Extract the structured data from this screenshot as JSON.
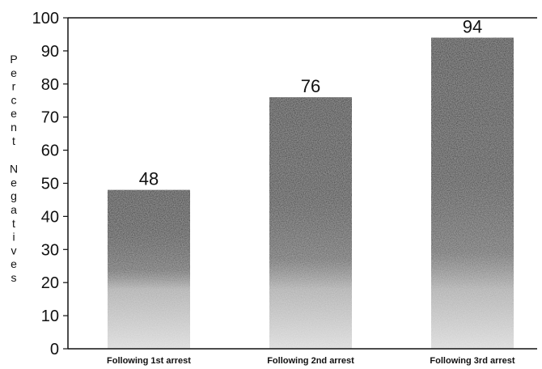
{
  "chart_data": {
    "type": "bar",
    "categories": [
      "Following 1st arrest",
      "Following 2nd arrest",
      "Following 3rd arrest"
    ],
    "values": [
      48,
      76,
      94
    ],
    "data_labels": [
      "48",
      "76",
      "94"
    ],
    "ylabel": "Percent Negatives",
    "ylim": [
      0,
      100
    ],
    "yticks": [
      0,
      10,
      20,
      30,
      40,
      50,
      60,
      70,
      80,
      90,
      100
    ],
    "grid": false,
    "legend": "none",
    "colors": {
      "bar_top": "#141414",
      "bar_mid": "#5a5a5a",
      "bar_bottom": "#d8d8d8",
      "axis": "#111111"
    }
  }
}
